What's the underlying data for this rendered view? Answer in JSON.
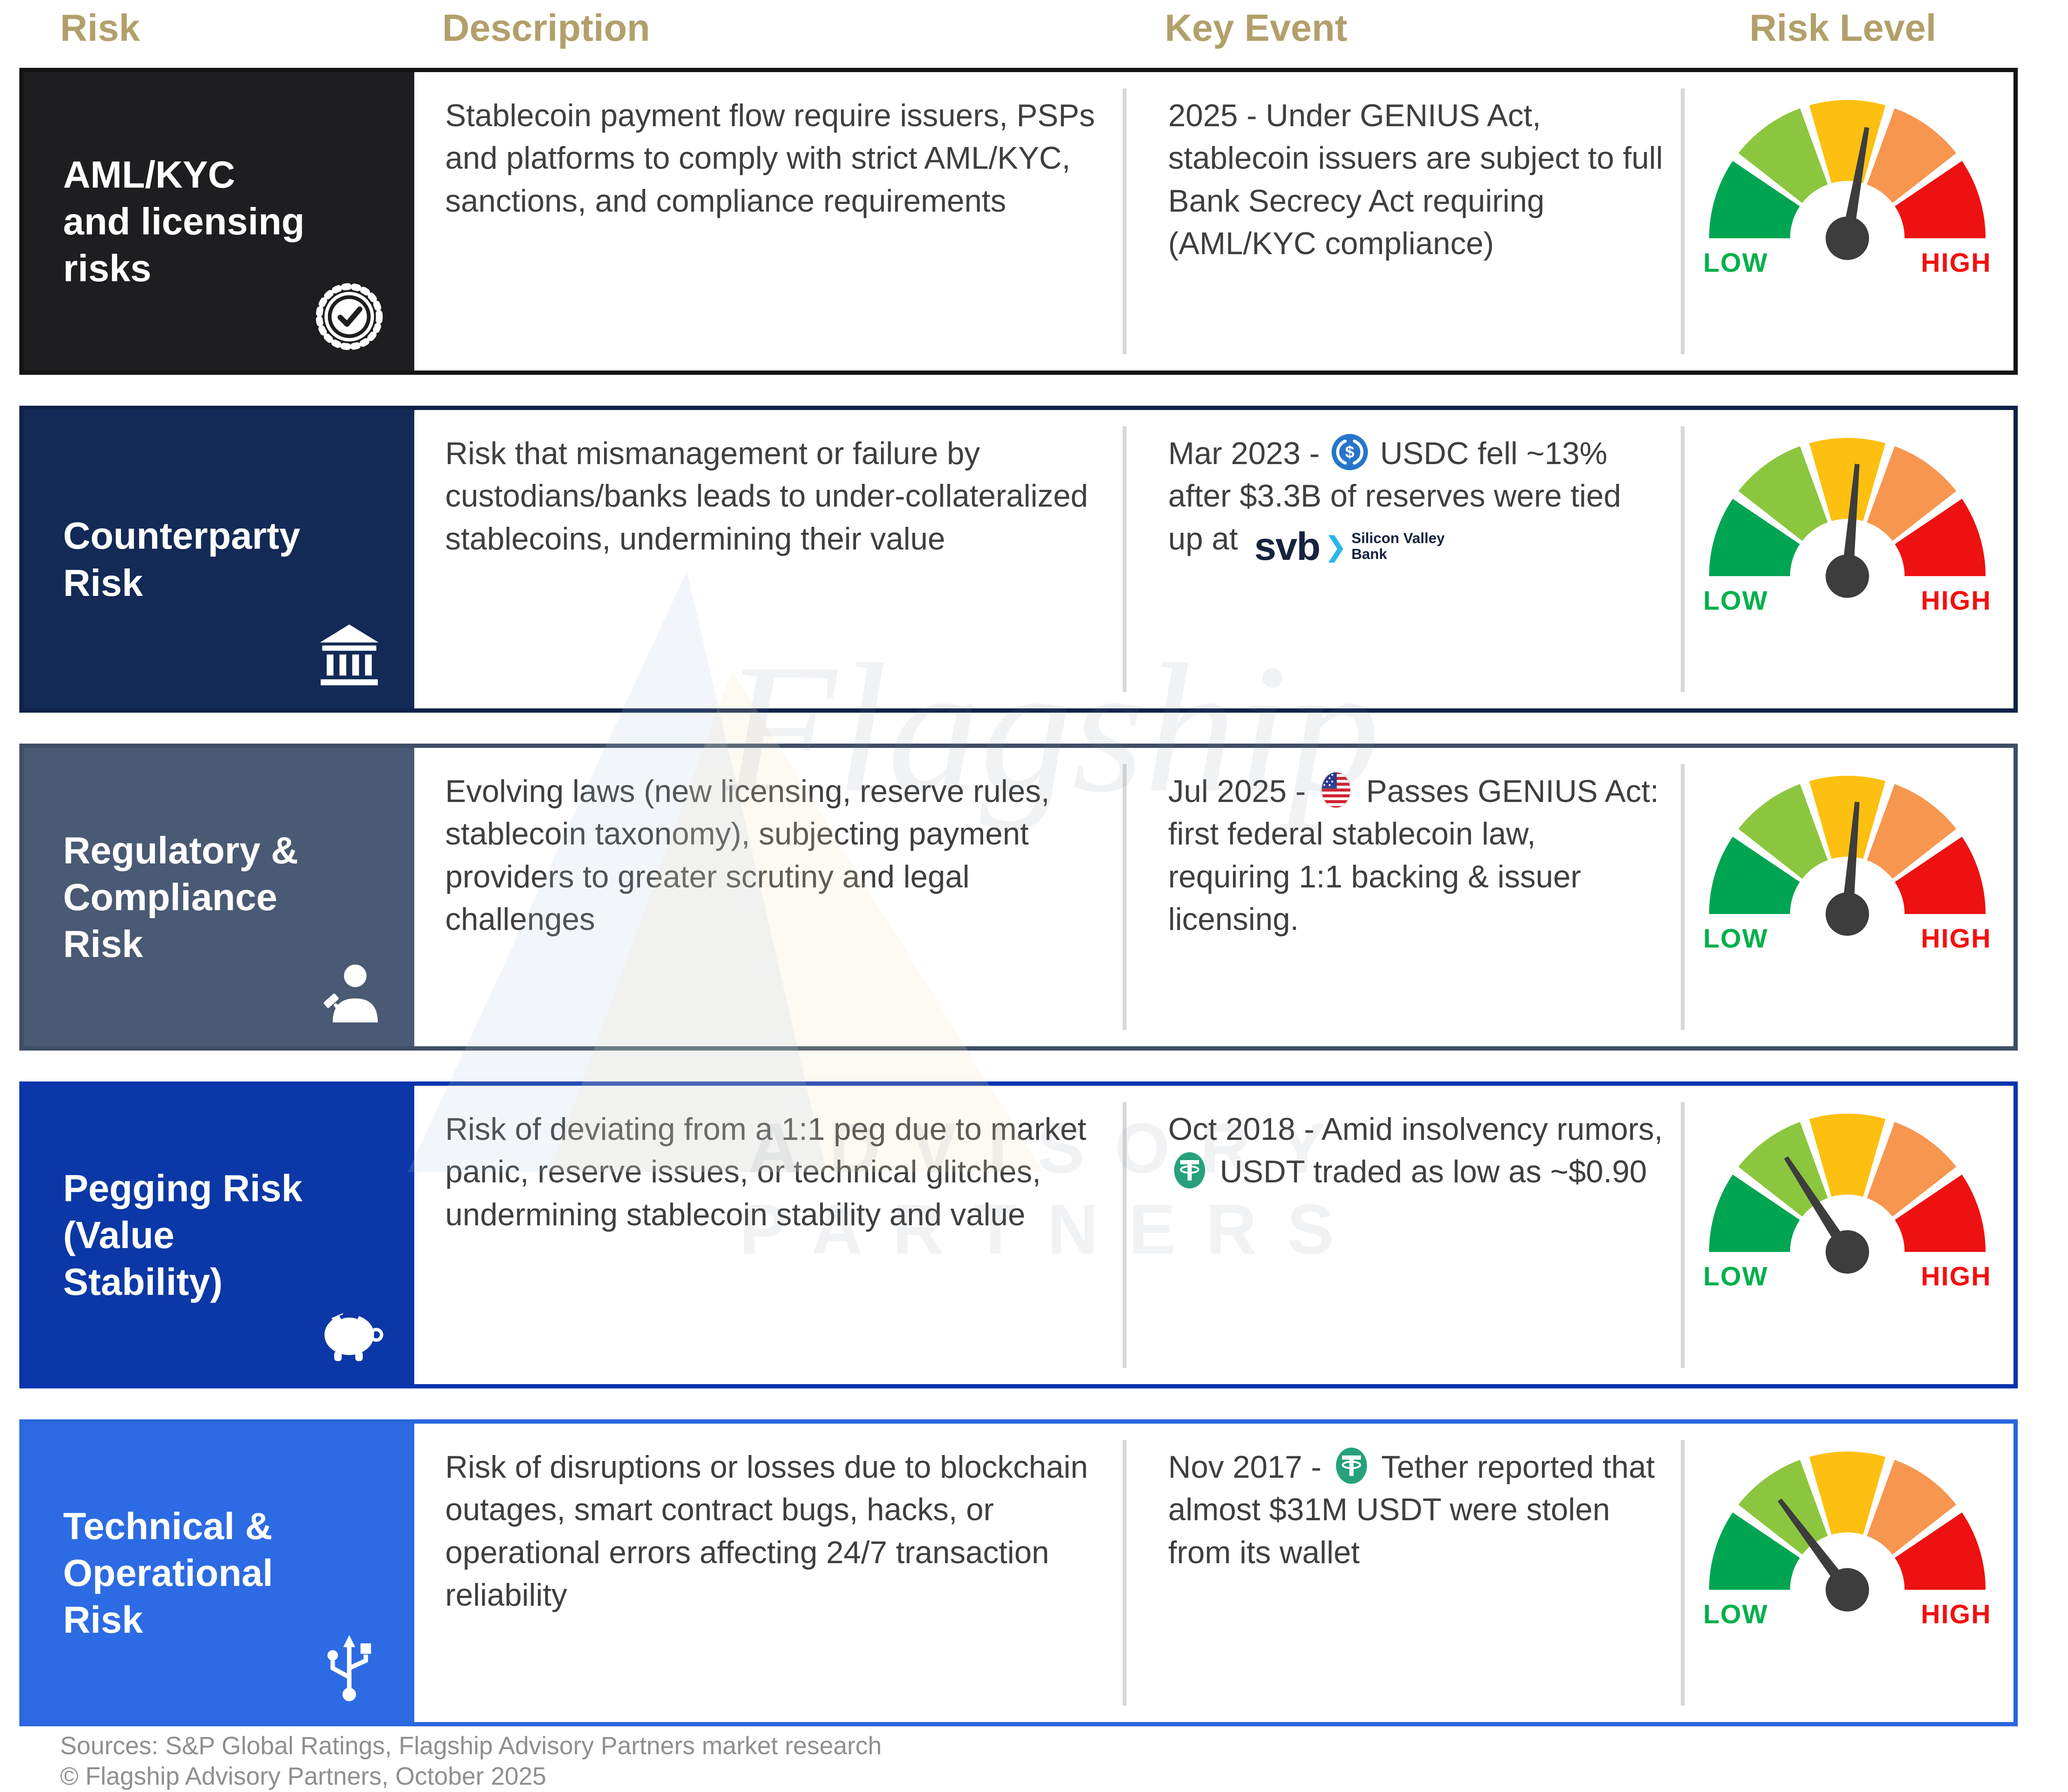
{
  "header": {
    "risk": "Risk",
    "description": "Description",
    "key_event": "Key Event",
    "risk_level": "Risk Level"
  },
  "gauge": {
    "low_label": "LOW",
    "high_label": "HIGH"
  },
  "watermark": {
    "line1": "Flagship",
    "line2": "ADVISORY PARTNERS"
  },
  "footer": {
    "line1": "Sources: S&P Global Ratings, Flagship Advisory Partners market research",
    "line2": "© Flagship Advisory Partners, October 2025"
  },
  "assets": {
    "svb": {
      "word": "svb",
      "chevron": "❯",
      "name1": "Silicon Valley",
      "name2": "Bank"
    }
  },
  "theme": {
    "header_gold": "#b2a06b",
    "text_dark": "#3f3f3f",
    "footer_gray": "#8f8f8f",
    "divider_gray": "#d8d8d8",
    "low_green": "#00b04c",
    "high_red": "#f50f0f",
    "needle_gray": "#3d3d3d",
    "seg_green": "#00a552",
    "seg_lightgreen": "#8cc63e",
    "seg_yellow": "#fdc010",
    "seg_orange": "#f7964f",
    "seg_red": "#ee1111",
    "usdc_blue": "#2775ca",
    "tether_teal": "#26a17b",
    "svb_navy": "#15233f",
    "svb_lightblue": "#29b7ea"
  },
  "rows": [
    {
      "risk": "AML/KYC\nand licensing\nrisks",
      "icon": "certificate-icon",
      "label_bg": "#1e1e20",
      "border_color": "#141414",
      "description": "Stablecoin payment flow require issuers, PSPs and platforms to comply with strict AML/KYC, sanctions, and compliance requirements",
      "event_parts": [
        {
          "text": "2025 - Under GENIUS Act, stablecoin issuers are subject to full Bank Secrecy Act requiring (AML/KYC compliance)"
        }
      ],
      "needle_deg": 10
    },
    {
      "risk": "Counterparty\nRisk",
      "icon": "bank-icon",
      "label_bg": "#132a56",
      "border_color": "#0e2249",
      "description": "Risk that mismanagement or failure by custodians/banks leads to under-collateralized stablecoins, undermining their value",
      "event_parts": [
        {
          "text": "Mar 2023 - "
        },
        {
          "icon": "usdc-icon"
        },
        {
          "text": " USDC fell ~13% after $3.3B of reserves were tied up at "
        },
        {
          "icon": "svb-logo"
        }
      ],
      "needle_deg": 5
    },
    {
      "risk": "Regulatory &\nCompliance\nRisk",
      "icon": "judge-icon",
      "label_bg": "#4a5a74",
      "border_color": "#3e4e66",
      "description": "Evolving laws (new licensing, reserve rules, stablecoin taxonomy), subjecting payment providers to greater scrutiny and legal challenges",
      "event_parts": [
        {
          "text": "Jul 2025 -  "
        },
        {
          "icon": "us-flag-icon"
        },
        {
          "text": " Passes GENIUS Act: first federal stablecoin law, requiring 1:1 backing & issuer licensing."
        }
      ],
      "needle_deg": 5
    },
    {
      "risk": "Pegging Risk\n(Value\nStability)",
      "icon": "piggy-bank-icon",
      "label_bg": "#0b38a6",
      "border_color": "#0a33ad",
      "description": "Risk of deviating from a 1:1 peg due to market panic, reserve issues, or technical glitches, undermining stablecoin stability and value",
      "event_parts": [
        {
          "text": "Oct 2018 - Amid insolvency rumors, "
        },
        {
          "icon": "tether-icon"
        },
        {
          "text": " USDT traded as low as ~$0.90"
        }
      ],
      "needle_deg": -33
    },
    {
      "risk": "Technical &\nOperational\nRisk",
      "icon": "usb-icon",
      "label_bg": "#2d6be4",
      "border_color": "#2a66dd",
      "description": "Risk of disruptions or losses due to blockchain outages, smart contract bugs, hacks, or operational errors affecting 24/7 transaction reliability",
      "event_parts": [
        {
          "text": "Nov 2017 - "
        },
        {
          "icon": "tether-icon"
        },
        {
          "text": " Tether reported that almost $31M USDT were stolen from its wallet"
        }
      ],
      "needle_deg": -37
    }
  ]
}
